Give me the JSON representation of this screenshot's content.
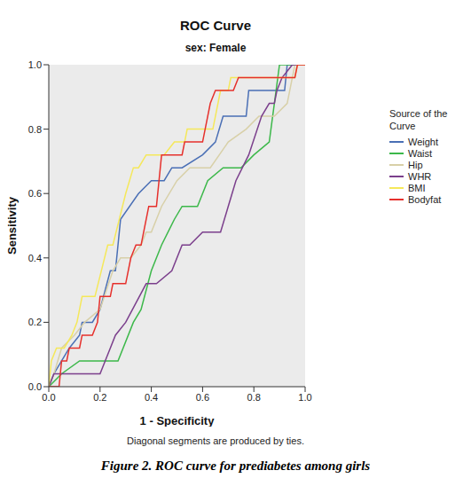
{
  "chart_data": {
    "type": "line",
    "title": "ROC Curve",
    "subtitle": "sex: Female",
    "x_label": "1 - Specificity",
    "y_label": "Sensitivity",
    "legend_title": "Source of the Curve",
    "note": "Diagonal segments are produced by ties.",
    "caption": "Figure 2. ROC curve for prediabetes among girls",
    "xlim": [
      0,
      1
    ],
    "ylim": [
      0,
      1
    ],
    "xticks": [
      {
        "value": 0,
        "label": "0.0"
      },
      {
        "value": 0.2,
        "label": "0.2"
      },
      {
        "value": 0.4,
        "label": "0.4"
      },
      {
        "value": 0.6,
        "label": "0.6"
      },
      {
        "value": 0.8,
        "label": "0.8"
      },
      {
        "value": 1,
        "label": "1.0"
      }
    ],
    "yticks": [
      {
        "value": 0,
        "label": "0.0"
      },
      {
        "value": 0.2,
        "label": "0.2"
      },
      {
        "value": 0.4,
        "label": "0.4"
      },
      {
        "value": 0.6,
        "label": "0.6"
      },
      {
        "value": 0.8,
        "label": "0.8"
      },
      {
        "value": 1,
        "label": "1.0"
      }
    ],
    "grid": false,
    "legend": "right",
    "series": [
      {
        "name": "Weight",
        "color": "#4a6fb5",
        "x": [
          0,
          0.02,
          0.05,
          0.08,
          0.12,
          0.13,
          0.17,
          0.2,
          0.24,
          0.26,
          0.28,
          0.35,
          0.4,
          0.45,
          0.48,
          0.52,
          0.6,
          0.65,
          0.68,
          0.77,
          0.78,
          0.92,
          0.93,
          1
        ],
        "values": [
          0,
          0.04,
          0.08,
          0.12,
          0.16,
          0.2,
          0.2,
          0.24,
          0.36,
          0.36,
          0.52,
          0.6,
          0.64,
          0.64,
          0.68,
          0.68,
          0.72,
          0.76,
          0.84,
          0.84,
          0.92,
          0.92,
          1,
          1
        ]
      },
      {
        "name": "Waist",
        "color": "#3cb84a",
        "x": [
          0,
          0.05,
          0.12,
          0.27,
          0.33,
          0.36,
          0.4,
          0.44,
          0.49,
          0.52,
          0.58,
          0.62,
          0.68,
          0.75,
          0.8,
          0.86,
          0.88,
          0.9,
          1
        ],
        "values": [
          0,
          0.04,
          0.08,
          0.08,
          0.2,
          0.24,
          0.36,
          0.44,
          0.52,
          0.56,
          0.56,
          0.64,
          0.68,
          0.68,
          0.72,
          0.76,
          0.88,
          1,
          1
        ]
      },
      {
        "name": "Hip",
        "color": "#d8d0a8",
        "x": [
          0,
          0.02,
          0.05,
          0.1,
          0.14,
          0.2,
          0.25,
          0.28,
          0.32,
          0.36,
          0.38,
          0.4,
          0.44,
          0.5,
          0.55,
          0.63,
          0.7,
          0.77,
          0.82,
          0.88,
          0.93,
          0.96,
          1
        ],
        "values": [
          0,
          0.04,
          0.12,
          0.16,
          0.2,
          0.24,
          0.36,
          0.4,
          0.4,
          0.44,
          0.48,
          0.48,
          0.56,
          0.64,
          0.68,
          0.68,
          0.76,
          0.8,
          0.84,
          0.84,
          0.88,
          1,
          1
        ]
      },
      {
        "name": "WHR",
        "color": "#7b3f8c",
        "x": [
          0,
          0.02,
          0.2,
          0.24,
          0.26,
          0.3,
          0.38,
          0.42,
          0.48,
          0.52,
          0.55,
          0.6,
          0.67,
          0.7,
          0.73,
          0.78,
          0.83,
          0.86,
          0.88,
          0.89,
          0.91,
          0.95,
          1
        ],
        "values": [
          0,
          0.04,
          0.04,
          0.12,
          0.16,
          0.2,
          0.32,
          0.32,
          0.36,
          0.44,
          0.44,
          0.48,
          0.48,
          0.56,
          0.64,
          0.72,
          0.84,
          0.88,
          0.88,
          0.92,
          0.96,
          1,
          1
        ]
      },
      {
        "name": "BMI",
        "color": "#f5e85a",
        "x": [
          0,
          0.01,
          0.03,
          0.06,
          0.09,
          0.11,
          0.13,
          0.18,
          0.23,
          0.25,
          0.3,
          0.33,
          0.35,
          0.38,
          0.45,
          0.49,
          0.53,
          0.54,
          0.64,
          0.67,
          0.7,
          0.71,
          0.96,
          0.97,
          1
        ],
        "values": [
          0,
          0.08,
          0.12,
          0.12,
          0.16,
          0.2,
          0.28,
          0.28,
          0.44,
          0.44,
          0.6,
          0.68,
          0.68,
          0.72,
          0.72,
          0.76,
          0.76,
          0.8,
          0.8,
          0.92,
          0.92,
          0.96,
          0.96,
          1,
          1
        ]
      },
      {
        "name": "Bodyfat",
        "color": "#e6302c",
        "x": [
          0,
          0.04,
          0.05,
          0.07,
          0.08,
          0.12,
          0.13,
          0.17,
          0.19,
          0.2,
          0.24,
          0.25,
          0.3,
          0.32,
          0.34,
          0.36,
          0.39,
          0.42,
          0.44,
          0.52,
          0.53,
          0.6,
          0.63,
          0.65,
          0.72,
          0.74,
          0.96,
          0.97,
          1
        ],
        "values": [
          0,
          0,
          0.08,
          0.08,
          0.12,
          0.12,
          0.16,
          0.16,
          0.2,
          0.28,
          0.28,
          0.32,
          0.32,
          0.4,
          0.44,
          0.44,
          0.56,
          0.56,
          0.72,
          0.72,
          0.76,
          0.76,
          0.88,
          0.92,
          0.92,
          0.96,
          0.96,
          1,
          1
        ]
      }
    ]
  }
}
